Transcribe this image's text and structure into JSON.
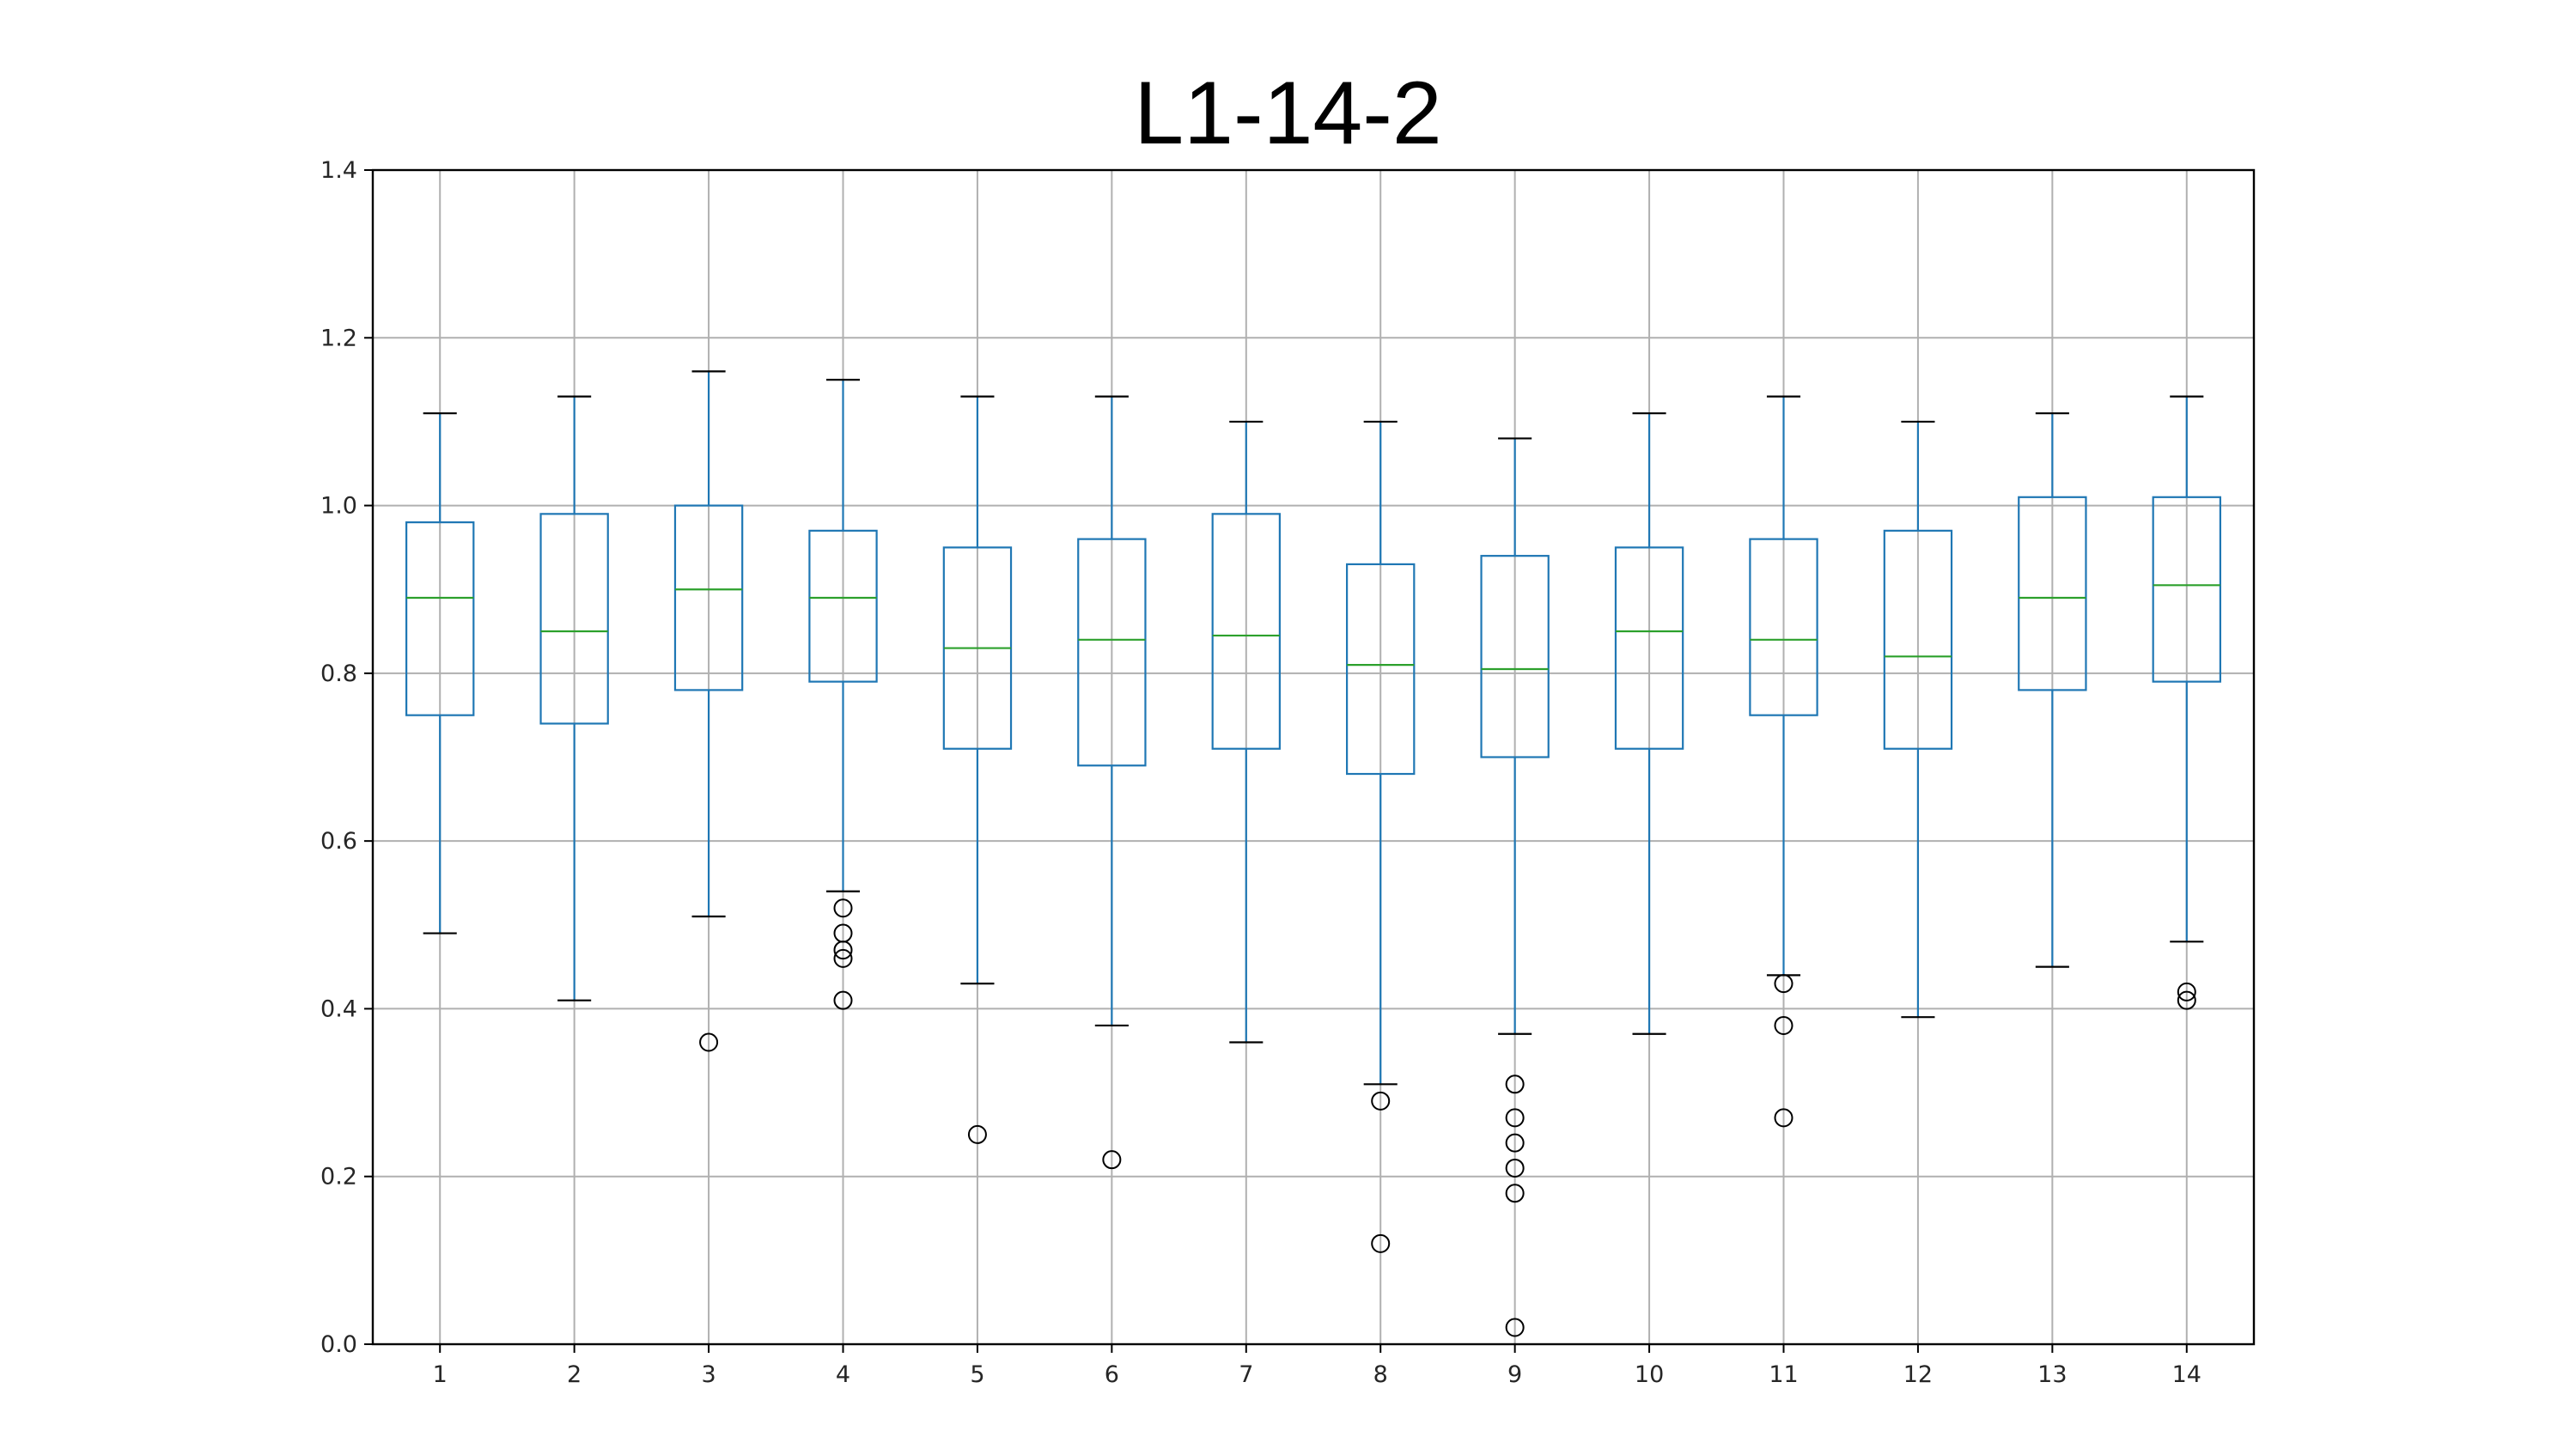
{
  "chart_data": {
    "type": "boxplot",
    "title": "L1-14-2",
    "xlabel": "",
    "ylabel": "",
    "categories": [
      "1",
      "2",
      "3",
      "4",
      "5",
      "6",
      "7",
      "8",
      "9",
      "10",
      "11",
      "12",
      "13",
      "14"
    ],
    "ylim": [
      0.0,
      1.4
    ],
    "yticks": [
      "0.0",
      "0.2",
      "0.4",
      "0.6",
      "0.8",
      "1.0",
      "1.2",
      "1.4"
    ],
    "grid": true,
    "boxes": [
      {
        "category": "1",
        "whisker_low": 0.49,
        "q1": 0.75,
        "median": 0.89,
        "q3": 0.98,
        "whisker_high": 1.11,
        "outliers": []
      },
      {
        "category": "2",
        "whisker_low": 0.41,
        "q1": 0.74,
        "median": 0.85,
        "q3": 0.99,
        "whisker_high": 1.13,
        "outliers": []
      },
      {
        "category": "3",
        "whisker_low": 0.51,
        "q1": 0.78,
        "median": 0.9,
        "q3": 1.0,
        "whisker_high": 1.16,
        "outliers": [
          0.36
        ]
      },
      {
        "category": "4",
        "whisker_low": 0.54,
        "q1": 0.79,
        "median": 0.89,
        "q3": 0.97,
        "whisker_high": 1.15,
        "outliers": [
          0.52,
          0.49,
          0.47,
          0.46,
          0.41
        ]
      },
      {
        "category": "5",
        "whisker_low": 0.43,
        "q1": 0.71,
        "median": 0.83,
        "q3": 0.95,
        "whisker_high": 1.13,
        "outliers": [
          0.25
        ]
      },
      {
        "category": "6",
        "whisker_low": 0.38,
        "q1": 0.69,
        "median": 0.84,
        "q3": 0.96,
        "whisker_high": 1.13,
        "outliers": [
          0.22
        ]
      },
      {
        "category": "7",
        "whisker_low": 0.36,
        "q1": 0.71,
        "median": 0.845,
        "q3": 0.99,
        "whisker_high": 1.1,
        "outliers": []
      },
      {
        "category": "8",
        "whisker_low": 0.31,
        "q1": 0.68,
        "median": 0.81,
        "q3": 0.93,
        "whisker_high": 1.1,
        "outliers": [
          0.29,
          0.12
        ]
      },
      {
        "category": "9",
        "whisker_low": 0.37,
        "q1": 0.7,
        "median": 0.805,
        "q3": 0.94,
        "whisker_high": 1.08,
        "outliers": [
          0.31,
          0.27,
          0.24,
          0.21,
          0.18,
          0.02
        ]
      },
      {
        "category": "10",
        "whisker_low": 0.37,
        "q1": 0.71,
        "median": 0.85,
        "q3": 0.95,
        "whisker_high": 1.11,
        "outliers": []
      },
      {
        "category": "11",
        "whisker_low": 0.44,
        "q1": 0.75,
        "median": 0.84,
        "q3": 0.96,
        "whisker_high": 1.13,
        "outliers": [
          0.43,
          0.38,
          0.27
        ]
      },
      {
        "category": "12",
        "whisker_low": 0.39,
        "q1": 0.71,
        "median": 0.82,
        "q3": 0.97,
        "whisker_high": 1.1,
        "outliers": []
      },
      {
        "category": "13",
        "whisker_low": 0.45,
        "q1": 0.78,
        "median": 0.89,
        "q3": 1.01,
        "whisker_high": 1.11,
        "outliers": []
      },
      {
        "category": "14",
        "whisker_low": 0.48,
        "q1": 0.79,
        "median": 0.905,
        "q3": 1.01,
        "whisker_high": 1.13,
        "outliers": [
          0.42,
          0.41
        ]
      }
    ],
    "colors": {
      "box": "#1f77b4",
      "median": "#2ca02c",
      "cap": "#000000",
      "outlier": "#000000",
      "grid": "#b0b0b0",
      "axes": "#000000"
    }
  }
}
